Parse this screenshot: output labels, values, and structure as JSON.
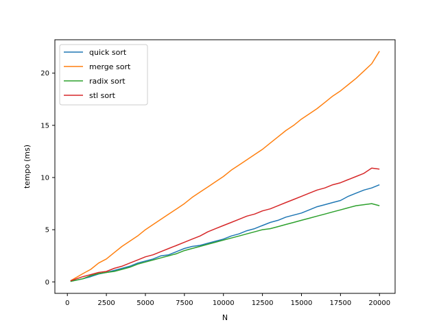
{
  "chart_data": {
    "type": "line",
    "title": "",
    "xlabel": "N",
    "ylabel": "tempo (ms)",
    "xlim": [
      -800,
      21000
    ],
    "ylim": [
      -1.1,
      23.2
    ],
    "xticks": [
      0,
      2500,
      5000,
      7500,
      10000,
      12500,
      15000,
      17500,
      20000
    ],
    "yticks": [
      0,
      5,
      10,
      15,
      20
    ],
    "legend": "top-left",
    "grid": false,
    "series": [
      {
        "name": "quick sort",
        "color": "#1f77b4",
        "points": [
          [
            200,
            0.05
          ],
          [
            1000,
            0.3
          ],
          [
            1500,
            0.5
          ],
          [
            2000,
            0.75
          ],
          [
            2500,
            0.9
          ],
          [
            3000,
            1.1
          ],
          [
            3500,
            1.3
          ],
          [
            4000,
            1.5
          ],
          [
            4500,
            1.8
          ],
          [
            5000,
            2.0
          ],
          [
            5500,
            2.2
          ],
          [
            6000,
            2.5
          ],
          [
            6500,
            2.6
          ],
          [
            7000,
            2.9
          ],
          [
            7500,
            3.2
          ],
          [
            8000,
            3.4
          ],
          [
            8500,
            3.5
          ],
          [
            9000,
            3.7
          ],
          [
            9500,
            3.9
          ],
          [
            10000,
            4.1
          ],
          [
            10500,
            4.4
          ],
          [
            11000,
            4.6
          ],
          [
            11500,
            4.9
          ],
          [
            12000,
            5.1
          ],
          [
            12500,
            5.4
          ],
          [
            13000,
            5.7
          ],
          [
            13500,
            5.9
          ],
          [
            14000,
            6.2
          ],
          [
            14500,
            6.4
          ],
          [
            15000,
            6.6
          ],
          [
            15500,
            6.9
          ],
          [
            16000,
            7.2
          ],
          [
            16500,
            7.4
          ],
          [
            17000,
            7.6
          ],
          [
            17500,
            7.8
          ],
          [
            18000,
            8.2
          ],
          [
            18500,
            8.5
          ],
          [
            19000,
            8.8
          ],
          [
            19500,
            9.0
          ],
          [
            20000,
            9.3
          ]
        ]
      },
      {
        "name": "merge sort",
        "color": "#ff7f0e",
        "points": [
          [
            200,
            0.1
          ],
          [
            1000,
            0.8
          ],
          [
            1500,
            1.2
          ],
          [
            2000,
            1.8
          ],
          [
            2500,
            2.2
          ],
          [
            3000,
            2.8
          ],
          [
            3500,
            3.4
          ],
          [
            4000,
            3.9
          ],
          [
            4500,
            4.4
          ],
          [
            5000,
            5.0
          ],
          [
            5500,
            5.5
          ],
          [
            6000,
            6.0
          ],
          [
            6500,
            6.5
          ],
          [
            7000,
            7.0
          ],
          [
            7500,
            7.5
          ],
          [
            8000,
            8.1
          ],
          [
            8500,
            8.6
          ],
          [
            9000,
            9.1
          ],
          [
            9500,
            9.6
          ],
          [
            10000,
            10.1
          ],
          [
            10500,
            10.7
          ],
          [
            11000,
            11.2
          ],
          [
            11500,
            11.7
          ],
          [
            12000,
            12.2
          ],
          [
            12500,
            12.7
          ],
          [
            13000,
            13.3
          ],
          [
            13500,
            13.9
          ],
          [
            14000,
            14.5
          ],
          [
            14500,
            15.0
          ],
          [
            15000,
            15.6
          ],
          [
            15500,
            16.1
          ],
          [
            16000,
            16.6
          ],
          [
            16500,
            17.2
          ],
          [
            17000,
            17.8
          ],
          [
            17500,
            18.3
          ],
          [
            18000,
            18.9
          ],
          [
            18500,
            19.5
          ],
          [
            19000,
            20.2
          ],
          [
            19500,
            20.9
          ],
          [
            20000,
            22.1
          ]
        ]
      },
      {
        "name": "radix sort",
        "color": "#2ca02c",
        "points": [
          [
            200,
            0.05
          ],
          [
            1000,
            0.3
          ],
          [
            1500,
            0.6
          ],
          [
            2000,
            0.8
          ],
          [
            2500,
            0.9
          ],
          [
            3000,
            1.0
          ],
          [
            3500,
            1.2
          ],
          [
            4000,
            1.4
          ],
          [
            4500,
            1.7
          ],
          [
            5000,
            1.9
          ],
          [
            5500,
            2.1
          ],
          [
            6000,
            2.3
          ],
          [
            6500,
            2.5
          ],
          [
            7000,
            2.7
          ],
          [
            7500,
            3.0
          ],
          [
            8000,
            3.2
          ],
          [
            8500,
            3.4
          ],
          [
            9000,
            3.6
          ],
          [
            9500,
            3.8
          ],
          [
            10000,
            4.0
          ],
          [
            10500,
            4.2
          ],
          [
            11000,
            4.4
          ],
          [
            11500,
            4.6
          ],
          [
            12000,
            4.8
          ],
          [
            12500,
            5.0
          ],
          [
            13000,
            5.1
          ],
          [
            13500,
            5.3
          ],
          [
            14000,
            5.5
          ],
          [
            14500,
            5.7
          ],
          [
            15000,
            5.9
          ],
          [
            15500,
            6.1
          ],
          [
            16000,
            6.3
          ],
          [
            16500,
            6.5
          ],
          [
            17000,
            6.7
          ],
          [
            17500,
            6.9
          ],
          [
            18000,
            7.1
          ],
          [
            18500,
            7.3
          ],
          [
            19000,
            7.4
          ],
          [
            19500,
            7.5
          ],
          [
            20000,
            7.3
          ]
        ]
      },
      {
        "name": "stl sort",
        "color": "#d62728",
        "points": [
          [
            200,
            0.1
          ],
          [
            1000,
            0.5
          ],
          [
            1500,
            0.7
          ],
          [
            2000,
            0.9
          ],
          [
            2500,
            1.0
          ],
          [
            3000,
            1.3
          ],
          [
            3500,
            1.5
          ],
          [
            4000,
            1.8
          ],
          [
            4500,
            2.1
          ],
          [
            5000,
            2.4
          ],
          [
            5500,
            2.6
          ],
          [
            6000,
            2.9
          ],
          [
            6500,
            3.2
          ],
          [
            7000,
            3.5
          ],
          [
            7500,
            3.8
          ],
          [
            8000,
            4.1
          ],
          [
            8500,
            4.4
          ],
          [
            9000,
            4.8
          ],
          [
            9500,
            5.1
          ],
          [
            10000,
            5.4
          ],
          [
            10500,
            5.7
          ],
          [
            11000,
            6.0
          ],
          [
            11500,
            6.3
          ],
          [
            12000,
            6.5
          ],
          [
            12500,
            6.8
          ],
          [
            13000,
            7.0
          ],
          [
            13500,
            7.3
          ],
          [
            14000,
            7.6
          ],
          [
            14500,
            7.9
          ],
          [
            15000,
            8.2
          ],
          [
            15500,
            8.5
          ],
          [
            16000,
            8.8
          ],
          [
            16500,
            9.0
          ],
          [
            17000,
            9.3
          ],
          [
            17500,
            9.5
          ],
          [
            18000,
            9.8
          ],
          [
            18500,
            10.1
          ],
          [
            19000,
            10.4
          ],
          [
            19500,
            10.9
          ],
          [
            20000,
            10.8
          ]
        ]
      }
    ]
  }
}
